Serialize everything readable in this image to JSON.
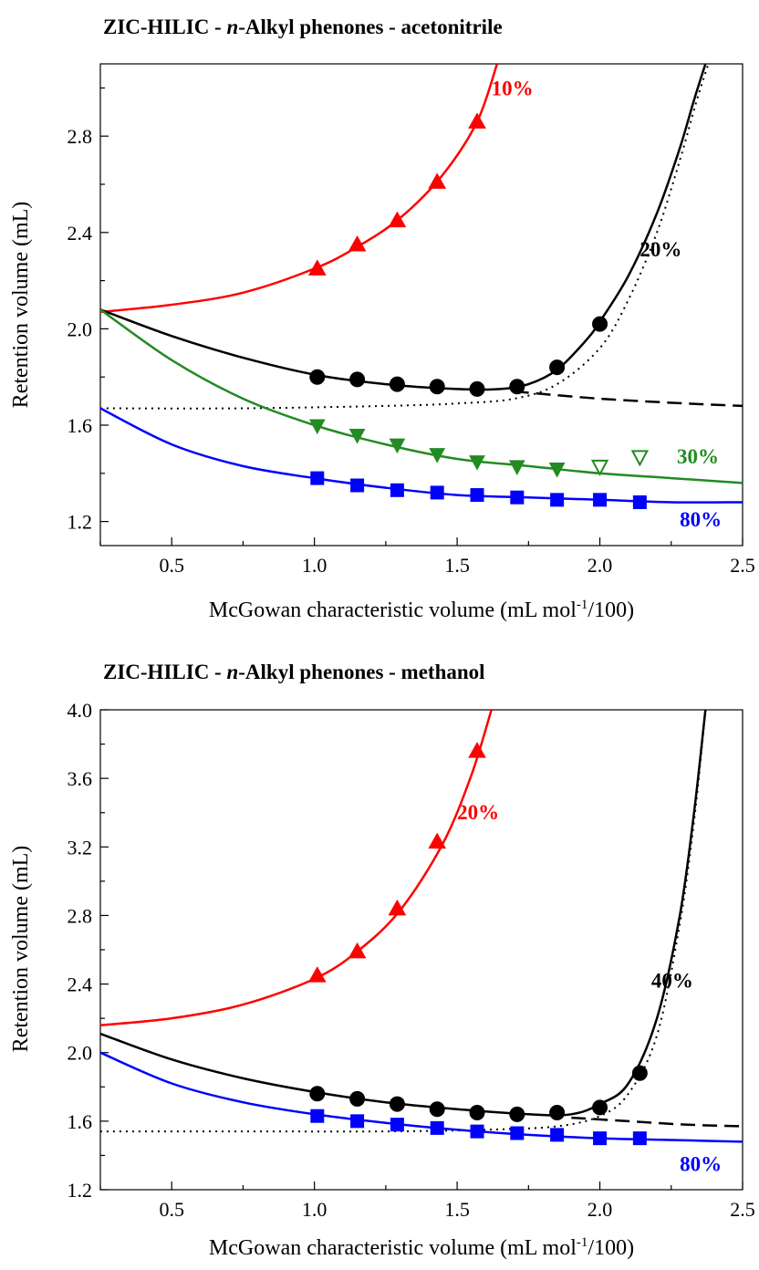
{
  "colors": {
    "red": "#ff0000",
    "black": "#000000",
    "green": "#228b22",
    "blue": "#0000ff"
  },
  "chart_data": [
    {
      "type": "scatter",
      "title": "ZIC-HILIC - n-Alkyl phenones - acetonitrile",
      "title_parts": [
        "ZIC-HILIC - ",
        "n",
        "-Alkyl phenones - acetonitrile"
      ],
      "xlabel": "McGowan characteristic volume (mL mol",
      "xlabel_sup": "-1",
      "xlabel_end": "/100)",
      "ylabel": "Retention volume (mL)",
      "xlim": [
        0.25,
        2.5
      ],
      "ylim": [
        1.1,
        3.1
      ],
      "xticks": [
        "0.5",
        "1.0",
        "1.5",
        "2.0",
        "2.5"
      ],
      "yticks": [
        "1.2",
        "1.6",
        "2.0",
        "2.4",
        "2.8"
      ],
      "grid": false,
      "series": [
        {
          "name": "10%",
          "color": "red",
          "marker": "triangle-up",
          "label_at": [
            1.62,
            2.97
          ],
          "x": [
            1.01,
            1.15,
            1.29,
            1.43,
            1.57
          ],
          "y": [
            2.25,
            2.35,
            2.45,
            2.61,
            2.86
          ],
          "fit": {
            "x": [
              0.25,
              0.5,
              0.75,
              1.0,
              1.15,
              1.3,
              1.45,
              1.57,
              1.64
            ],
            "y": [
              2.07,
              2.1,
              2.15,
              2.25,
              2.34,
              2.46,
              2.64,
              2.86,
              3.1
            ]
          }
        },
        {
          "name": "20%",
          "color": "black",
          "marker": "circle",
          "label_at": [
            2.14,
            2.3
          ],
          "x": [
            1.01,
            1.15,
            1.29,
            1.43,
            1.57,
            1.71,
            1.85,
            2.0
          ],
          "y": [
            1.8,
            1.79,
            1.77,
            1.76,
            1.75,
            1.76,
            1.84,
            2.02
          ],
          "fit": {
            "x": [
              0.25,
              0.5,
              0.75,
              1.0,
              1.25,
              1.5,
              1.65,
              1.75,
              1.85,
              1.95,
              2.0,
              2.1,
              2.2,
              2.28,
              2.33,
              2.37
            ],
            "y": [
              2.08,
              1.97,
              1.88,
              1.81,
              1.77,
              1.75,
              1.75,
              1.77,
              1.83,
              1.95,
              2.03,
              2.22,
              2.48,
              2.75,
              2.95,
              3.1
            ]
          },
          "dashed": {
            "x": [
              1.7,
              2.0,
              2.3,
              2.5
            ],
            "y": [
              1.74,
              1.71,
              1.69,
              1.68
            ]
          },
          "dotted": {
            "x": [
              0.25,
              0.75,
              1.25,
              1.5,
              1.7,
              1.85,
              2.0,
              2.1,
              2.2,
              2.28,
              2.34,
              2.38
            ],
            "y": [
              1.67,
              1.67,
              1.68,
              1.69,
              1.71,
              1.77,
              1.92,
              2.12,
              2.4,
              2.7,
              2.95,
              3.1
            ]
          }
        },
        {
          "name": "30%",
          "color": "green",
          "marker": "triangle-down",
          "label_at": [
            2.27,
            1.44
          ],
          "x": [
            1.01,
            1.15,
            1.29,
            1.43,
            1.57,
            1.71,
            1.85
          ],
          "y": [
            1.6,
            1.56,
            1.52,
            1.48,
            1.45,
            1.43,
            1.42
          ],
          "open_x": [
            2.0,
            2.14
          ],
          "open_y": [
            1.43,
            1.47
          ],
          "fit": {
            "x": [
              0.25,
              0.5,
              0.75,
              1.0,
              1.25,
              1.5,
              1.75,
              2.0,
              2.25,
              2.5
            ],
            "y": [
              2.08,
              1.87,
              1.71,
              1.6,
              1.52,
              1.46,
              1.43,
              1.4,
              1.38,
              1.36
            ]
          }
        },
        {
          "name": "80%",
          "color": "blue",
          "marker": "square",
          "label_at": [
            2.28,
            1.18
          ],
          "x": [
            1.01,
            1.15,
            1.29,
            1.43,
            1.57,
            1.71,
            1.85,
            2.0,
            2.14
          ],
          "y": [
            1.38,
            1.35,
            1.33,
            1.32,
            1.31,
            1.3,
            1.29,
            1.29,
            1.28
          ],
          "fit": {
            "x": [
              0.25,
              0.5,
              0.75,
              1.0,
              1.25,
              1.5,
              1.75,
              2.0,
              2.25,
              2.5
            ],
            "y": [
              1.67,
              1.52,
              1.43,
              1.38,
              1.34,
              1.31,
              1.3,
              1.29,
              1.28,
              1.28
            ]
          }
        }
      ]
    },
    {
      "type": "scatter",
      "title": "ZIC-HILIC - n-Alkyl phenones - methanol",
      "title_parts": [
        "ZIC-HILIC - ",
        "n",
        "-Alkyl phenones - methanol"
      ],
      "xlabel": "McGowan characteristic volume (mL mol",
      "xlabel_sup": "-1",
      "xlabel_end": "/100)",
      "ylabel": "Retention volume (mL)",
      "xlim": [
        0.25,
        2.5
      ],
      "ylim": [
        1.2,
        4.0
      ],
      "xticks": [
        "0.5",
        "1.0",
        "1.5",
        "2.0",
        "2.5"
      ],
      "yticks": [
        "1.2",
        "1.6",
        "2.0",
        "2.4",
        "2.8",
        "3.2",
        "3.6",
        "4.0"
      ],
      "grid": false,
      "series": [
        {
          "name": "20%",
          "color": "red",
          "marker": "triangle-up",
          "label_at": [
            1.5,
            3.36
          ],
          "x": [
            1.01,
            1.15,
            1.29,
            1.43,
            1.57
          ],
          "y": [
            2.45,
            2.59,
            2.84,
            3.23,
            3.76
          ],
          "fit": {
            "x": [
              0.25,
              0.5,
              0.75,
              1.0,
              1.15,
              1.3,
              1.45,
              1.55,
              1.62
            ],
            "y": [
              2.16,
              2.2,
              2.28,
              2.43,
              2.59,
              2.83,
              3.22,
              3.62,
              4.0
            ]
          }
        },
        {
          "name": "40%",
          "color": "black",
          "marker": "circle",
          "label_at": [
            2.18,
            2.38
          ],
          "x": [
            1.01,
            1.15,
            1.29,
            1.43,
            1.57,
            1.71,
            1.85,
            2.0,
            2.14
          ],
          "y": [
            1.76,
            1.73,
            1.7,
            1.67,
            1.65,
            1.64,
            1.65,
            1.68,
            1.88
          ],
          "fit": {
            "x": [
              0.25,
              0.5,
              0.75,
              1.0,
              1.25,
              1.5,
              1.75,
              1.9,
              2.0,
              2.1,
              2.2,
              2.28,
              2.33,
              2.37
            ],
            "y": [
              2.11,
              1.96,
              1.85,
              1.77,
              1.71,
              1.67,
              1.64,
              1.64,
              1.7,
              1.82,
              2.2,
              2.8,
              3.4,
              4.0
            ]
          },
          "dashed": {
            "x": [
              1.9,
              2.1,
              2.3,
              2.5
            ],
            "y": [
              1.62,
              1.6,
              1.58,
              1.57
            ]
          },
          "dotted": {
            "x": [
              0.25,
              0.75,
              1.25,
              1.6,
              1.85,
              2.0,
              2.1,
              2.2,
              2.28,
              2.33,
              2.37
            ],
            "y": [
              1.54,
              1.54,
              1.54,
              1.55,
              1.57,
              1.63,
              1.76,
              2.1,
              2.75,
              3.35,
              4.0
            ]
          }
        },
        {
          "name": "80%",
          "color": "blue",
          "marker": "square",
          "label_at": [
            2.28,
            1.31
          ],
          "x": [
            1.01,
            1.15,
            1.29,
            1.43,
            1.57,
            1.71,
            1.85,
            2.0,
            2.14
          ],
          "y": [
            1.63,
            1.6,
            1.58,
            1.56,
            1.54,
            1.53,
            1.52,
            1.5,
            1.5
          ],
          "fit": {
            "x": [
              0.25,
              0.5,
              0.75,
              1.0,
              1.25,
              1.5,
              1.75,
              2.0,
              2.25,
              2.5
            ],
            "y": [
              2.0,
              1.82,
              1.71,
              1.64,
              1.59,
              1.55,
              1.52,
              1.5,
              1.49,
              1.48
            ]
          }
        }
      ]
    }
  ]
}
